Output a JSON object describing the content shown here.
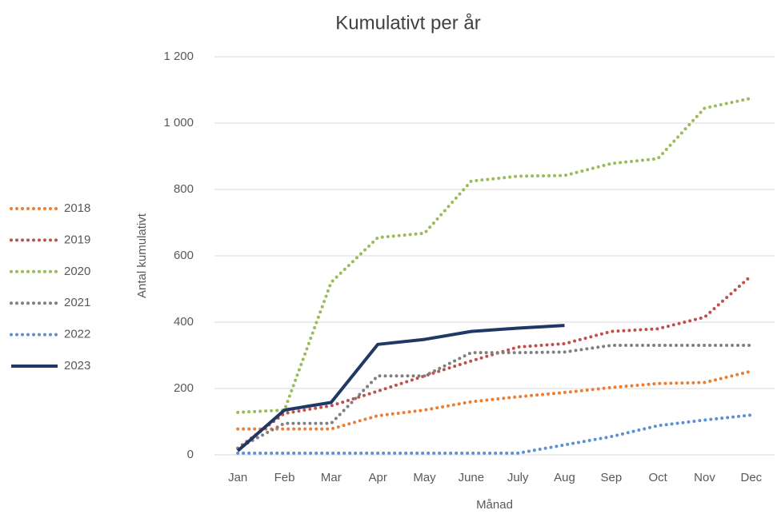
{
  "chart_data": {
    "type": "line",
    "title": "Kumulativt per år",
    "x_label": "Månad",
    "y_label": "Antal kumulativt",
    "categories": [
      "Jan",
      "Feb",
      "Mar",
      "Apr",
      "May",
      "June",
      "July",
      "Aug",
      "Sep",
      "Oct",
      "Nov",
      "Dec"
    ],
    "ylim": [
      0,
      1200
    ],
    "yticks": [
      0,
      200,
      400,
      600,
      800,
      {
        "value": 1000,
        "label": "1 000"
      },
      {
        "value": 1200,
        "label": "1 200"
      }
    ],
    "grid": true,
    "legend": "left",
    "series": [
      {
        "name": "2018",
        "color": "#ed7d31",
        "style": "dotted",
        "values": [
          78,
          78,
          78,
          118,
          135,
          160,
          175,
          188,
          203,
          215,
          218,
          252
        ]
      },
      {
        "name": "2019",
        "color": "#c0504d",
        "style": "dotted",
        "values": [
          20,
          125,
          148,
          192,
          238,
          283,
          325,
          335,
          372,
          380,
          415,
          540
        ]
      },
      {
        "name": "2020",
        "color": "#9bbb59",
        "style": "dotted",
        "values": [
          128,
          135,
          520,
          655,
          668,
          825,
          840,
          842,
          878,
          893,
          1045,
          1075
        ]
      },
      {
        "name": "2021",
        "color": "#7f7f7f",
        "style": "dotted",
        "values": [
          20,
          95,
          95,
          238,
          238,
          308,
          308,
          310,
          330,
          330,
          330,
          330
        ]
      },
      {
        "name": "2022",
        "color": "#5b8fd6",
        "style": "dotted",
        "values": [
          5,
          5,
          5,
          5,
          5,
          5,
          5,
          30,
          55,
          88,
          105,
          120
        ]
      },
      {
        "name": "2023",
        "color": "#1f3864",
        "style": "solid",
        "values": [
          12,
          135,
          158,
          333,
          348,
          372,
          382,
          390,
          null,
          null,
          null,
          null
        ]
      }
    ]
  }
}
